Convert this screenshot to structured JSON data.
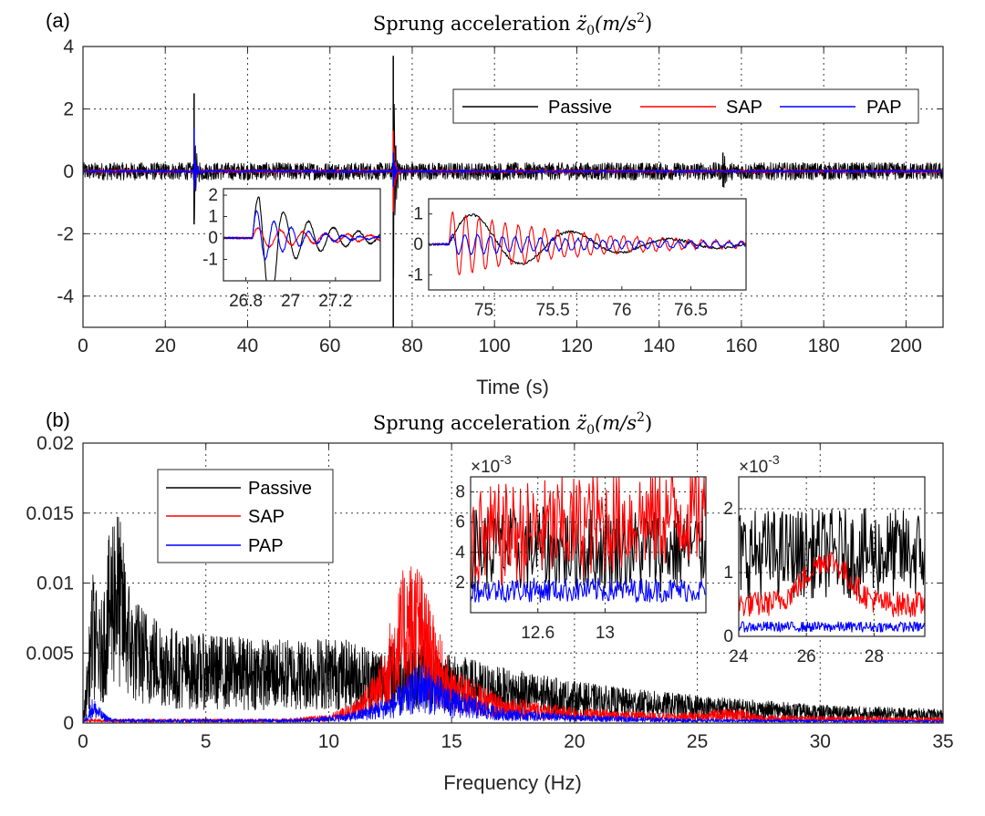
{
  "colors": {
    "passive": "#000000",
    "sap": "#ff0000",
    "pap": "#0000ff"
  },
  "chart_data": [
    {
      "panel_label": "(a)",
      "type": "line",
      "title": "Sprung acceleration z̈₀(m/s²)",
      "title_main": "Sprung acceleration ",
      "title_math": "z̈",
      "title_sub": "0",
      "title_unit": "(m/s",
      "title_sup": "2",
      "title_close": ")",
      "xlabel": "Time (s)",
      "ylabel": "",
      "xlim": [
        0,
        209
      ],
      "ylim": [
        -5,
        4
      ],
      "xticks": [
        0,
        20,
        40,
        60,
        80,
        100,
        120,
        140,
        160,
        180,
        200
      ],
      "yticks": [
        4,
        2,
        0,
        -2,
        -4
      ],
      "xtick_labels": [
        "0",
        "20",
        "40",
        "60",
        "80",
        "100",
        "120",
        "140",
        "160",
        "180",
        "200"
      ],
      "ytick_labels": [
        "4",
        "2",
        "0",
        "-2",
        "-4"
      ],
      "grid": true,
      "legend_position": "top-right",
      "legend_orientation": "horizontal",
      "series": [
        {
          "name": "Passive",
          "noise_amp": 0.28,
          "events": [
            {
              "t": 27,
              "peak": 2.5,
              "min": -1.7
            },
            {
              "t": 75.4,
              "peak": 3.7,
              "min": -5.0
            },
            {
              "t": 155.5,
              "peak": 0.6,
              "min": -0.5
            }
          ]
        },
        {
          "name": "SAP",
          "noise_amp": 0.06,
          "events": [
            {
              "t": 27,
              "peak": 1.0,
              "min": -0.6
            },
            {
              "t": 75.4,
              "peak": 1.3,
              "min": -1.3
            }
          ]
        },
        {
          "name": "PAP",
          "noise_amp": 0.05,
          "events": [
            {
              "t": 27,
              "peak": 1.4,
              "min": -0.6
            },
            {
              "t": 75.4,
              "peak": 0.6,
              "min": -0.5
            }
          ]
        }
      ],
      "insets": [
        {
          "name": "inset-a1",
          "xlim": [
            26.7,
            27.4
          ],
          "ylim": [
            -2,
            2.3
          ],
          "xticks": [
            26.8,
            27,
            27.2
          ],
          "xtick_labels": [
            "26.8",
            "27",
            "27.2"
          ],
          "yticks": [
            2,
            1,
            0,
            -1
          ],
          "ytick_labels": [
            "2",
            "1",
            "0",
            "-1"
          ],
          "event_t": 26.83,
          "series": [
            {
              "name": "Passive",
              "amp": 2.1,
              "freq": 9,
              "decay": 4,
              "neg_dip": -1.7
            },
            {
              "name": "SAP",
              "amp": 0.5,
              "freq": 10,
              "decay": 2.5
            },
            {
              "name": "PAP",
              "amp": 1.4,
              "freq": 13,
              "decay": 6
            }
          ]
        },
        {
          "name": "inset-a2",
          "xlim": [
            74.6,
            76.9
          ],
          "ylim": [
            -1.5,
            1.5
          ],
          "xticks": [
            75,
            75.5,
            76,
            76.5
          ],
          "xtick_labels": [
            "75",
            "75.5",
            "76",
            "76.5"
          ],
          "yticks": [
            1,
            0,
            -1
          ],
          "ytick_labels": [
            "1",
            "0",
            "-1"
          ],
          "event_t": 74.75,
          "series": [
            {
              "name": "Passive",
              "amp": 1.2,
              "freq": 1.4,
              "decay": 1.2
            },
            {
              "name": "SAP",
              "amp": 1.1,
              "freq": 10.5,
              "decay": 1.1
            },
            {
              "name": "PAP",
              "amp": 0.35,
              "freq": 11,
              "decay": 0.7
            }
          ]
        }
      ]
    },
    {
      "panel_label": "(b)",
      "type": "line",
      "title": "Sprung acceleration z̈₀(m/s²)",
      "title_main": "Sprung acceleration ",
      "title_math": "z̈",
      "title_sub": "0",
      "title_unit": "(m/s",
      "title_sup": "2",
      "title_close": ")",
      "xlabel": "Frequency (Hz)",
      "ylabel": "",
      "xlim": [
        0,
        35
      ],
      "ylim": [
        0,
        0.02
      ],
      "xticks": [
        0,
        5,
        10,
        15,
        20,
        25,
        30,
        35
      ],
      "yticks": [
        0.02,
        0.015,
        0.01,
        0.005,
        0
      ],
      "xtick_labels": [
        "0",
        "5",
        "10",
        "15",
        "20",
        "25",
        "30",
        "35"
      ],
      "ytick_labels": [
        "0.02",
        "0.015",
        "0.01",
        "0.005",
        "0"
      ],
      "grid": true,
      "legend_position": "top-left",
      "legend_orientation": "vertical",
      "series": [
        {
          "name": "Passive",
          "envelope": [
            [
              0,
              0.0
            ],
            [
              0.4,
              0.011
            ],
            [
              0.7,
              0.008
            ],
            [
              1.3,
              0.017
            ],
            [
              2,
              0.009
            ],
            [
              4,
              0.0065
            ],
            [
              8,
              0.006
            ],
            [
              10,
              0.0062
            ],
            [
              12,
              0.0055
            ],
            [
              14,
              0.006
            ],
            [
              15,
              0.005
            ],
            [
              17,
              0.004
            ],
            [
              20,
              0.003
            ],
            [
              22,
              0.0025
            ],
            [
              25,
              0.002
            ],
            [
              27,
              0.0017
            ],
            [
              30,
              0.0013
            ],
            [
              35,
              0.001
            ]
          ]
        },
        {
          "name": "SAP",
          "envelope": [
            [
              0,
              0.0003
            ],
            [
              8,
              0.0003
            ],
            [
              10,
              0.0006
            ],
            [
              11,
              0.0015
            ],
            [
              12,
              0.004
            ],
            [
              13.1,
              0.0115
            ],
            [
              13.6,
              0.012
            ],
            [
              14.2,
              0.008
            ],
            [
              15,
              0.004
            ],
            [
              17,
              0.002
            ],
            [
              20,
              0.0011
            ],
            [
              24,
              0.0007
            ],
            [
              26.6,
              0.0011
            ],
            [
              27.5,
              0.0006
            ],
            [
              35,
              0.0004
            ]
          ]
        },
        {
          "name": "PAP",
          "envelope": [
            [
              0,
              0.0
            ],
            [
              0.4,
              0.0019
            ],
            [
              0.8,
              0.0008
            ],
            [
              1.2,
              0.0003
            ],
            [
              9,
              0.0003
            ],
            [
              11,
              0.0008
            ],
            [
              12.5,
              0.002
            ],
            [
              13.8,
              0.0045
            ],
            [
              15,
              0.0025
            ],
            [
              17,
              0.0011
            ],
            [
              20,
              0.0006
            ],
            [
              25,
              0.0003
            ],
            [
              35,
              0.0002
            ]
          ]
        }
      ],
      "insets": [
        {
          "name": "inset-b1",
          "xlim": [
            12.2,
            13.6
          ],
          "ylim": [
            0,
            0.009
          ],
          "exponent_label": "×10",
          "exponent_power": "-3",
          "xticks": [
            12.6,
            13
          ],
          "xtick_labels": [
            "12.6",
            "13"
          ],
          "yticks": [
            8,
            6,
            4,
            2
          ],
          "ytick_labels": [
            "8",
            "6",
            "4",
            "2"
          ],
          "series": [
            {
              "name": "Passive",
              "base": 0.0042,
              "spread": 0.0028
            },
            {
              "name": "SAP",
              "base": 0.0048,
              "spread": 0.0035,
              "rise": 0.002
            },
            {
              "name": "PAP",
              "base": 0.0015,
              "spread": 0.0008
            }
          ]
        },
        {
          "name": "inset-b2",
          "xlim": [
            24,
            29.5
          ],
          "ylim": [
            0,
            0.0025
          ],
          "exponent_label": "×10",
          "exponent_power": "-3",
          "xticks": [
            24,
            26,
            28
          ],
          "xtick_labels": [
            "24",
            "26",
            "28"
          ],
          "yticks": [
            2,
            1,
            0
          ],
          "ytick_labels": [
            "2",
            "1",
            "0"
          ],
          "series": [
            {
              "name": "Passive",
              "base": 0.0013,
              "spread": 0.0007
            },
            {
              "name": "SAP",
              "base": 0.0005,
              "spread": 0.0002,
              "bump_at": 26.6,
              "bump": 0.0007
            },
            {
              "name": "PAP",
              "base": 0.00015,
              "spread": 8e-05
            }
          ]
        }
      ]
    }
  ]
}
